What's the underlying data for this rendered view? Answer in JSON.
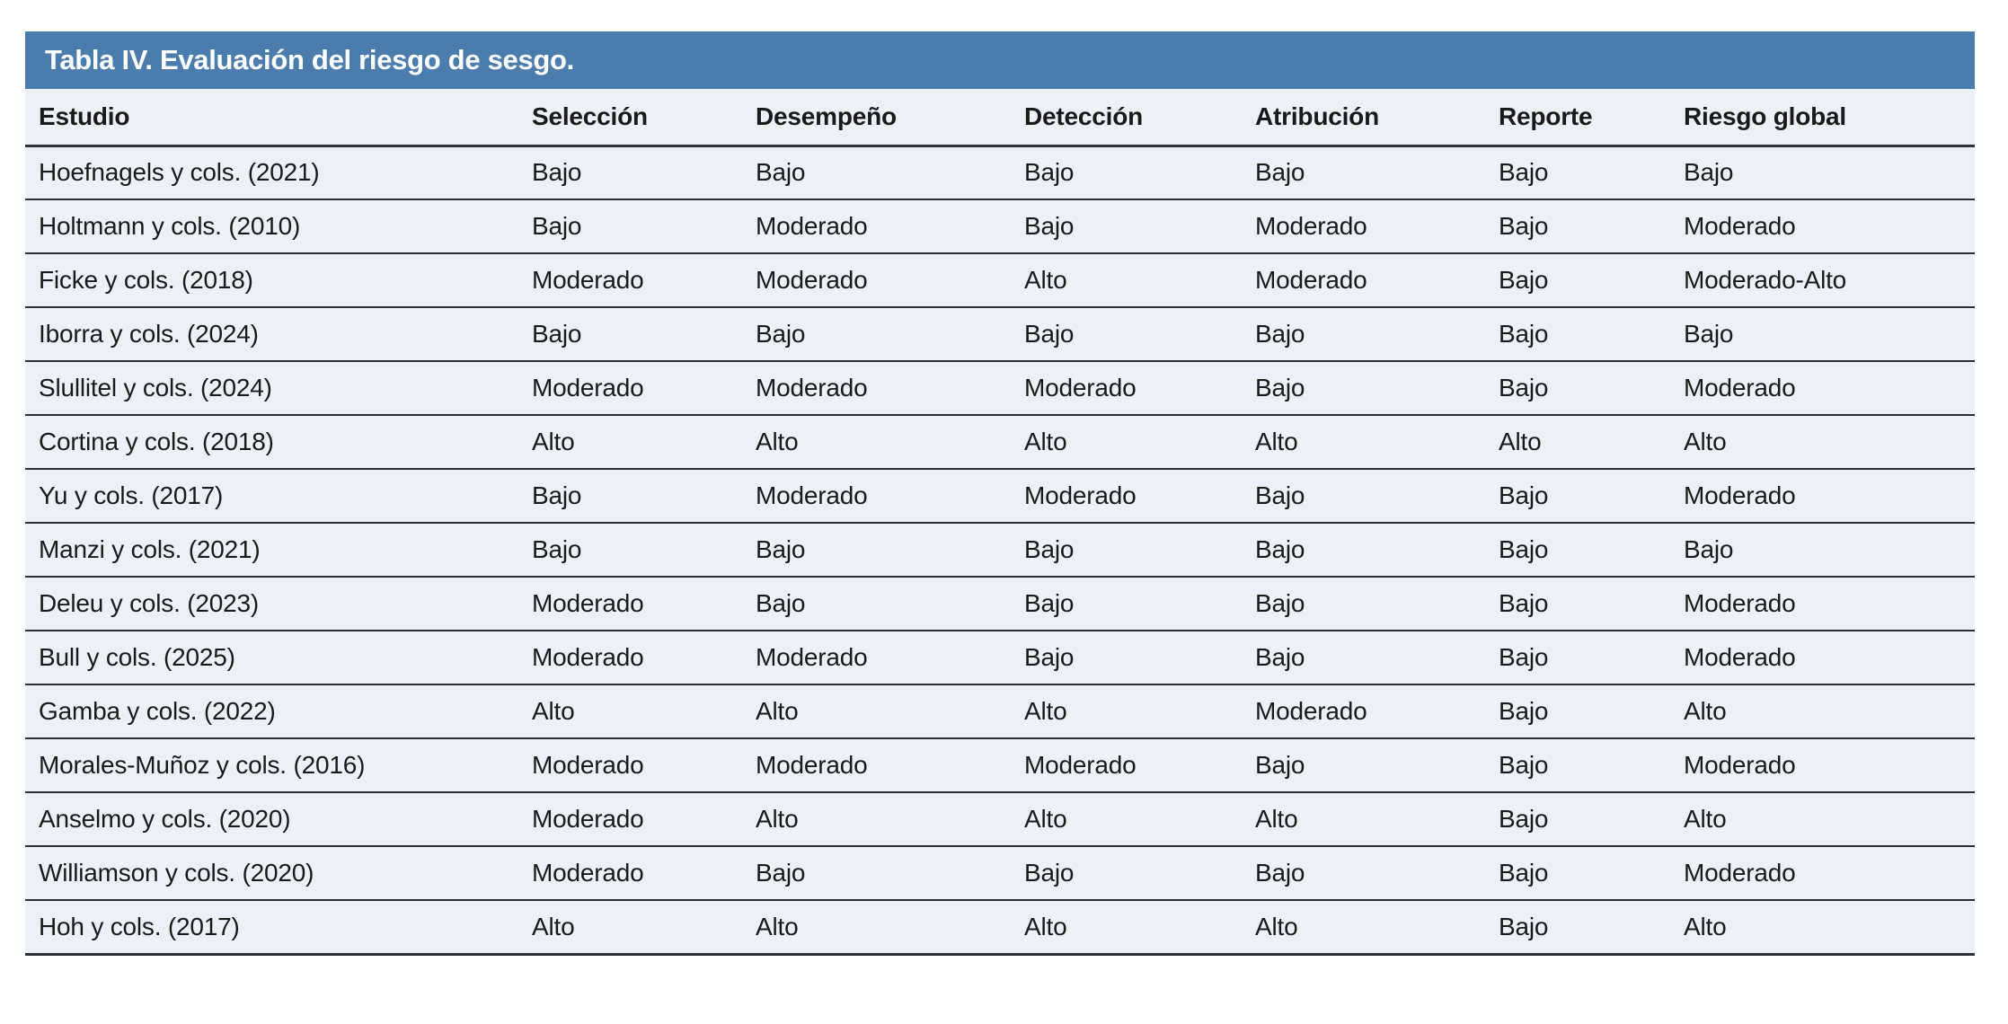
{
  "page": {
    "title": "Tabla IV. Evaluación del riesgo de sesgo."
  },
  "table": {
    "columns": [
      "Estudio",
      "Selección",
      "Desempeño",
      "Detección",
      "Atribución",
      "Reporte",
      "Riesgo global"
    ],
    "rows": [
      [
        "Hoefnagels y cols. (2021)",
        "Bajo",
        "Bajo",
        "Bajo",
        "Bajo",
        "Bajo",
        "Bajo"
      ],
      [
        "Holtmann y cols. (2010)",
        "Bajo",
        "Moderado",
        "Bajo",
        "Moderado",
        "Bajo",
        "Moderado"
      ],
      [
        "Ficke y cols. (2018)",
        "Moderado",
        "Moderado",
        "Alto",
        "Moderado",
        "Bajo",
        "Moderado-Alto"
      ],
      [
        "Iborra y cols. (2024)",
        "Bajo",
        "Bajo",
        "Bajo",
        "Bajo",
        "Bajo",
        "Bajo"
      ],
      [
        "Slullitel y cols. (2024)",
        "Moderado",
        "Moderado",
        "Moderado",
        "Bajo",
        "Bajo",
        "Moderado"
      ],
      [
        "Cortina y cols. (2018)",
        "Alto",
        "Alto",
        "Alto",
        "Alto",
        "Alto",
        "Alto"
      ],
      [
        "Yu y cols. (2017)",
        "Bajo",
        "Moderado",
        "Moderado",
        "Bajo",
        "Bajo",
        "Moderado"
      ],
      [
        "Manzi y cols. (2021)",
        "Bajo",
        "Bajo",
        "Bajo",
        "Bajo",
        "Bajo",
        "Bajo"
      ],
      [
        "Deleu y cols. (2023)",
        "Moderado",
        "Bajo",
        "Bajo",
        "Bajo",
        "Bajo",
        "Moderado"
      ],
      [
        "Bull y cols. (2025)",
        "Moderado",
        "Moderado",
        "Bajo",
        "Bajo",
        "Bajo",
        "Moderado"
      ],
      [
        "Gamba y cols. (2022)",
        "Alto",
        "Alto",
        "Alto",
        "Moderado",
        "Bajo",
        "Alto"
      ],
      [
        "Morales-Muñoz y cols. (2016)",
        "Moderado",
        "Moderado",
        "Moderado",
        "Bajo",
        "Bajo",
        "Moderado"
      ],
      [
        "Anselmo y cols. (2020)",
        "Moderado",
        "Alto",
        "Alto",
        "Alto",
        "Bajo",
        "Alto"
      ],
      [
        "Williamson y cols. (2020)",
        "Moderado",
        "Bajo",
        "Bajo",
        "Bajo",
        "Bajo",
        "Moderado"
      ],
      [
        "Hoh y cols. (2017)",
        "Alto",
        "Alto",
        "Alto",
        "Alto",
        "Bajo",
        "Alto"
      ]
    ]
  },
  "colors": {
    "accent": "#4a7dad",
    "rowbg": "#edf0f7",
    "line": "#2d3137",
    "text": "#1a1a1a",
    "title_text": "#ffffff"
  }
}
